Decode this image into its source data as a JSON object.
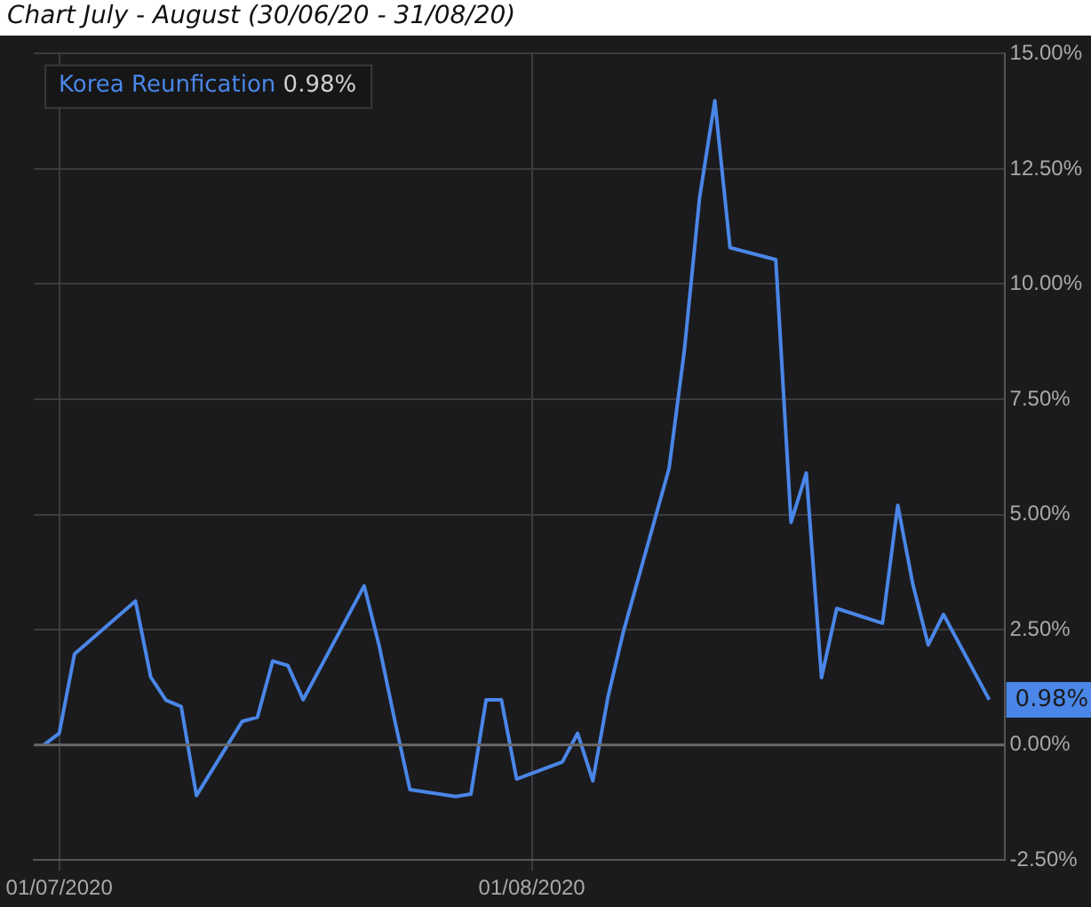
{
  "chart_data": {
    "type": "line",
    "title": "Chart July - August (30/06/20 - 31/08/20)",
    "x": [
      "2020-06-30",
      "2020-07-01",
      "2020-07-02",
      "2020-07-06",
      "2020-07-07",
      "2020-07-08",
      "2020-07-09",
      "2020-07-10",
      "2020-07-13",
      "2020-07-14",
      "2020-07-15",
      "2020-07-16",
      "2020-07-17",
      "2020-07-21",
      "2020-07-22",
      "2020-07-23",
      "2020-07-24",
      "2020-07-27",
      "2020-07-28",
      "2020-07-29",
      "2020-07-30",
      "2020-07-31",
      "2020-08-03",
      "2020-08-04",
      "2020-08-05",
      "2020-08-06",
      "2020-08-07",
      "2020-08-10",
      "2020-08-11",
      "2020-08-12",
      "2020-08-13",
      "2020-08-14",
      "2020-08-17",
      "2020-08-18",
      "2020-08-19",
      "2020-08-20",
      "2020-08-21",
      "2020-08-24",
      "2020-08-25",
      "2020-08-26",
      "2020-08-27",
      "2020-08-28",
      "2020-08-31"
    ],
    "series": [
      {
        "name": "Korea Reunfication",
        "color": "#4a86e8",
        "values": [
          0.0,
          0.25,
          1.97,
          3.12,
          1.47,
          0.97,
          0.83,
          -1.1,
          0.51,
          0.6,
          1.82,
          1.72,
          0.98,
          3.45,
          2.13,
          0.54,
          -0.97,
          -1.12,
          -1.07,
          0.98,
          0.98,
          -0.74,
          -0.37,
          0.25,
          -0.78,
          1.05,
          2.45,
          6.0,
          8.55,
          11.87,
          13.98,
          10.79,
          10.53,
          4.83,
          5.9,
          1.46,
          2.96,
          2.64,
          5.2,
          3.47,
          2.17,
          2.83,
          0.98
        ]
      }
    ],
    "xlim": [
      "2020-06-29T08:00",
      "2020-09-01T00:00"
    ],
    "xticks": [
      {
        "value": "2020-07-01",
        "label": "01/07/2020"
      },
      {
        "value": "2020-08-01",
        "label": "01/08/2020"
      }
    ],
    "ylim": [
      -2.5,
      15
    ],
    "yticks": [
      {
        "value": -2.5,
        "label": "-2.50%"
      },
      {
        "value": 0,
        "label": "0.00%"
      },
      {
        "value": 2.5,
        "label": "2.50%"
      },
      {
        "value": 5,
        "label": "5.00%"
      },
      {
        "value": 7.5,
        "label": "7.50%"
      },
      {
        "value": 10,
        "label": "10.00%"
      },
      {
        "value": 12.5,
        "label": "12.50%"
      },
      {
        "value": 15,
        "label": "15.00%"
      }
    ],
    "annotations": [
      "0.98%"
    ],
    "grid": true,
    "legend": "top left",
    "marker": "none",
    "line_style": "solid"
  }
}
